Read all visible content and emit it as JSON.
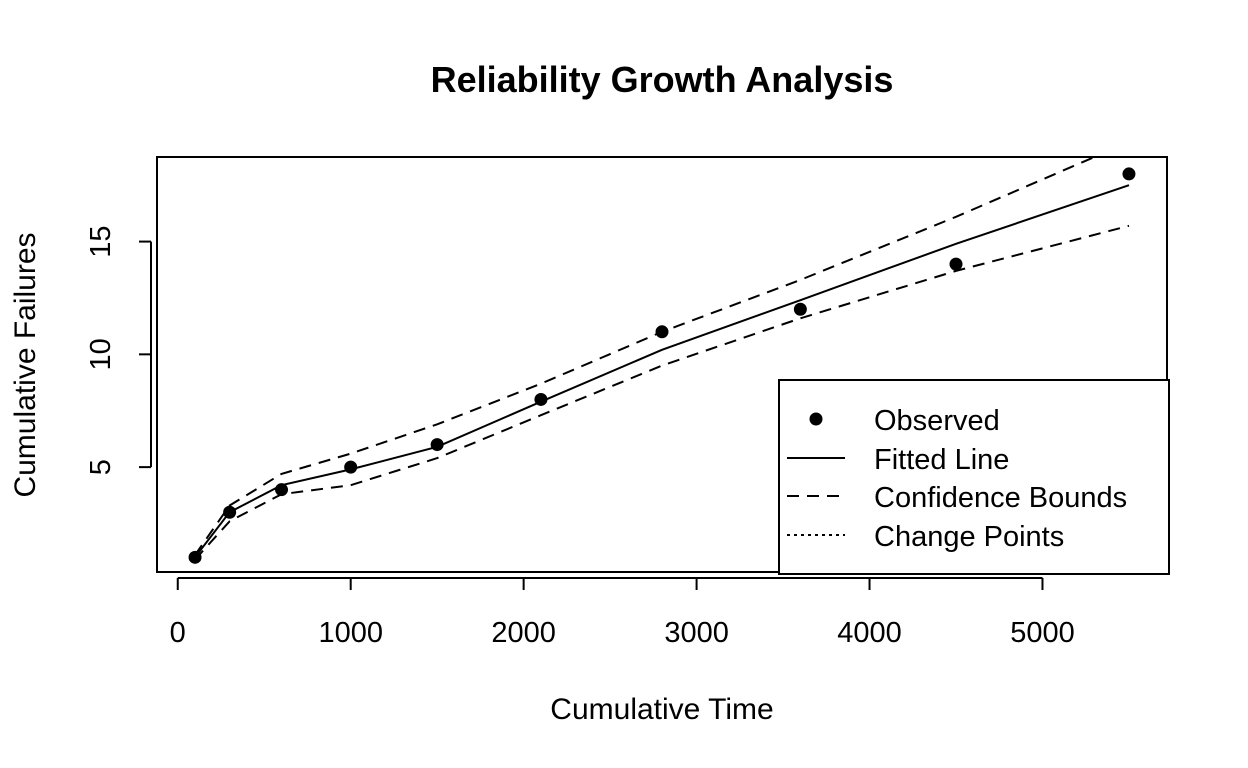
{
  "chart_data": {
    "type": "line",
    "title": "Reliability Growth Analysis",
    "xlabel": "Cumulative Time",
    "ylabel": "Cumulative Failures",
    "xlim": [
      -120,
      5720
    ],
    "ylim": [
      0.35,
      18.75
    ],
    "xticks": [
      0,
      1000,
      2000,
      3000,
      4000,
      5000
    ],
    "yticks": [
      5,
      10,
      15
    ],
    "grid": false,
    "legend_position": "bottom-right",
    "series": [
      {
        "name": "Observed",
        "style": "points",
        "x": [
          100,
          300,
          600,
          1000,
          1500,
          2100,
          2800,
          3600,
          4500,
          5500
        ],
        "y": [
          1,
          3,
          4,
          5,
          6,
          8,
          11,
          12,
          14,
          18
        ]
      },
      {
        "name": "Fitted Line",
        "style": "solid",
        "x": [
          100,
          300,
          600,
          1000,
          1500,
          2100,
          2800,
          3600,
          4500,
          5500
        ],
        "y": [
          1,
          3,
          4.2,
          4.9,
          5.9,
          7.9,
          10.2,
          12.4,
          14.9,
          17.5
        ]
      },
      {
        "name": "Confidence Bounds",
        "style": "dashed",
        "x": [
          100,
          300,
          600,
          1000,
          1500,
          2100,
          2800,
          3600,
          4500,
          5300
        ],
        "y": [
          1.1,
          3.3,
          4.7,
          5.6,
          6.9,
          8.7,
          11.0,
          13.3,
          16.1,
          18.75
        ]
      },
      {
        "name": "Confidence Bounds (lower)",
        "style": "dashed",
        "x": [
          100,
          300,
          600,
          1000,
          1500,
          2100,
          2800,
          3600,
          4500,
          5500
        ],
        "y": [
          0.9,
          2.6,
          3.8,
          4.2,
          5.4,
          7.3,
          9.5,
          11.6,
          13.7,
          15.7
        ]
      }
    ],
    "legend": [
      "Observed",
      "Fitted Line",
      "Confidence Bounds",
      "Change Points"
    ]
  }
}
